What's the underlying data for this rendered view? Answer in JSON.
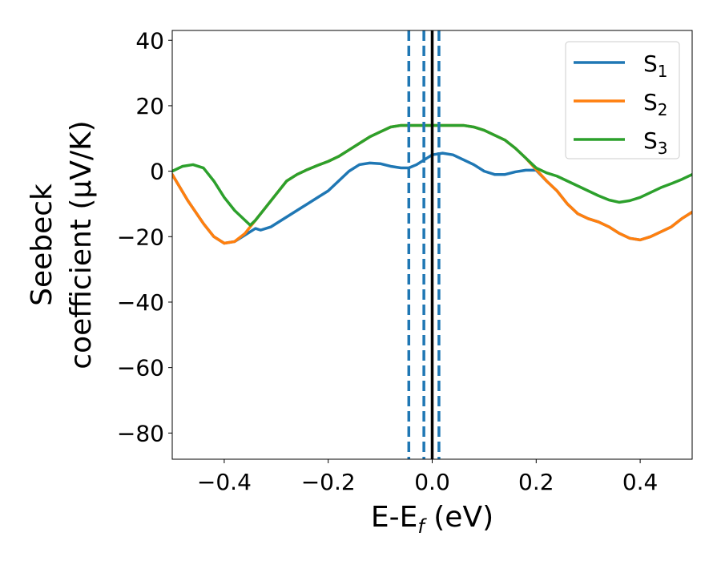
{
  "chart_data": {
    "type": "line",
    "xlabel_main": "E-E",
    "xlabel_sub": "f",
    "xlabel_unit": " (eV)",
    "ylabel_line1": "Seebeck",
    "ylabel_line2": "coefficient  (μV/K)",
    "xlim": [
      -0.5,
      0.5
    ],
    "ylim": [
      -88,
      43
    ],
    "xticks": [
      -0.4,
      -0.2,
      0.0,
      0.2,
      0.4
    ],
    "xtick_labels": [
      "−0.4",
      "−0.2",
      "0.0",
      "0.2",
      "0.4"
    ],
    "yticks": [
      40,
      20,
      0,
      -20,
      -40,
      -60,
      -80
    ],
    "ytick_labels": [
      "40",
      "20",
      "0",
      "−20",
      "−40",
      "−60",
      "−80"
    ],
    "grid": false,
    "legend_position": "top-right",
    "vertical_lines": [
      {
        "x": -0.045,
        "style": "dashed",
        "color": "#1f77b4"
      },
      {
        "x": -0.016,
        "style": "dashed",
        "color": "#1f77b4"
      },
      {
        "x": 0.0,
        "style": "solid",
        "color": "#000000"
      },
      {
        "x": 0.013,
        "style": "dashed",
        "color": "#1f77b4"
      }
    ],
    "series": [
      {
        "name": "S",
        "sub": "1",
        "color": "#1f77b4",
        "points": [
          [
            -0.5,
            -1
          ],
          [
            -0.47,
            -9
          ],
          [
            -0.44,
            -16
          ],
          [
            -0.42,
            -20
          ],
          [
            -0.4,
            -22
          ],
          [
            -0.38,
            -21.5
          ],
          [
            -0.36,
            -19.5
          ],
          [
            -0.34,
            -17.5
          ],
          [
            -0.33,
            -18
          ],
          [
            -0.31,
            -17
          ],
          [
            -0.28,
            -14
          ],
          [
            -0.25,
            -11
          ],
          [
            -0.22,
            -8
          ],
          [
            -0.2,
            -6
          ],
          [
            -0.18,
            -3
          ],
          [
            -0.16,
            0
          ],
          [
            -0.14,
            2
          ],
          [
            -0.12,
            2.5
          ],
          [
            -0.1,
            2.3
          ],
          [
            -0.08,
            1.5
          ],
          [
            -0.06,
            1
          ],
          [
            -0.045,
            1
          ],
          [
            -0.03,
            2
          ],
          [
            -0.015,
            3.5
          ],
          [
            0.0,
            5
          ],
          [
            0.02,
            5.5
          ],
          [
            0.04,
            5
          ],
          [
            0.06,
            3.5
          ],
          [
            0.08,
            2
          ],
          [
            0.1,
            0
          ],
          [
            0.12,
            -1
          ],
          [
            0.14,
            -1
          ],
          [
            0.16,
            -0.2
          ],
          [
            0.18,
            0.3
          ],
          [
            0.2,
            0.3
          ],
          [
            0.22,
            -3
          ],
          [
            0.24,
            -6
          ],
          [
            0.26,
            -10
          ],
          [
            0.28,
            -13
          ],
          [
            0.3,
            -14.5
          ],
          [
            0.32,
            -15.5
          ],
          [
            0.34,
            -17
          ],
          [
            0.36,
            -19
          ],
          [
            0.38,
            -20.5
          ],
          [
            0.4,
            -21
          ],
          [
            0.42,
            -20
          ],
          [
            0.44,
            -18.5
          ],
          [
            0.46,
            -17
          ],
          [
            0.48,
            -14.5
          ],
          [
            0.5,
            -12.5
          ]
        ]
      },
      {
        "name": "S",
        "sub": "2",
        "color": "#ff7f0e",
        "points": [
          [
            -0.5,
            -1
          ],
          [
            -0.47,
            -9
          ],
          [
            -0.44,
            -16
          ],
          [
            -0.42,
            -20
          ],
          [
            -0.4,
            -22
          ],
          [
            -0.38,
            -21.5
          ],
          [
            -0.36,
            -19
          ],
          [
            -0.34,
            -15
          ],
          [
            -0.32,
            -11
          ],
          [
            -0.3,
            -7
          ],
          [
            -0.28,
            -3
          ],
          [
            -0.26,
            -1
          ],
          [
            -0.24,
            0.5
          ],
          [
            -0.22,
            1.8
          ],
          [
            -0.2,
            3
          ],
          [
            -0.18,
            4.5
          ],
          [
            -0.16,
            6.5
          ],
          [
            -0.14,
            8.5
          ],
          [
            -0.12,
            10.5
          ],
          [
            -0.1,
            12
          ],
          [
            -0.08,
            13.5
          ],
          [
            -0.06,
            14
          ],
          [
            -0.04,
            14
          ],
          [
            -0.02,
            14
          ],
          [
            0.0,
            14
          ],
          [
            0.02,
            14
          ],
          [
            0.04,
            14
          ],
          [
            0.06,
            14
          ],
          [
            0.08,
            13.5
          ],
          [
            0.1,
            12.5
          ],
          [
            0.12,
            11
          ],
          [
            0.14,
            9.5
          ],
          [
            0.16,
            7
          ],
          [
            0.18,
            4
          ],
          [
            0.2,
            0.5
          ],
          [
            0.22,
            -3
          ],
          [
            0.24,
            -6
          ],
          [
            0.26,
            -10
          ],
          [
            0.28,
            -13
          ],
          [
            0.3,
            -14.5
          ],
          [
            0.32,
            -15.5
          ],
          [
            0.34,
            -17
          ],
          [
            0.36,
            -19
          ],
          [
            0.38,
            -20.5
          ],
          [
            0.4,
            -21
          ],
          [
            0.42,
            -20
          ],
          [
            0.44,
            -18.5
          ],
          [
            0.46,
            -17
          ],
          [
            0.48,
            -14.5
          ],
          [
            0.5,
            -12.5
          ]
        ]
      },
      {
        "name": "S",
        "sub": "3",
        "color": "#2ca02c",
        "points": [
          [
            -0.5,
            0
          ],
          [
            -0.48,
            1.5
          ],
          [
            -0.46,
            2
          ],
          [
            -0.44,
            1
          ],
          [
            -0.42,
            -3
          ],
          [
            -0.4,
            -8
          ],
          [
            -0.38,
            -12
          ],
          [
            -0.36,
            -15
          ],
          [
            -0.35,
            -16.5
          ],
          [
            -0.34,
            -15
          ],
          [
            -0.32,
            -11
          ],
          [
            -0.3,
            -7
          ],
          [
            -0.28,
            -3
          ],
          [
            -0.26,
            -1
          ],
          [
            -0.24,
            0.5
          ],
          [
            -0.22,
            1.8
          ],
          [
            -0.2,
            3
          ],
          [
            -0.18,
            4.5
          ],
          [
            -0.16,
            6.5
          ],
          [
            -0.14,
            8.5
          ],
          [
            -0.12,
            10.5
          ],
          [
            -0.1,
            12
          ],
          [
            -0.08,
            13.5
          ],
          [
            -0.06,
            14
          ],
          [
            -0.04,
            14
          ],
          [
            -0.02,
            14
          ],
          [
            0.0,
            14
          ],
          [
            0.02,
            14
          ],
          [
            0.04,
            14
          ],
          [
            0.06,
            14
          ],
          [
            0.08,
            13.5
          ],
          [
            0.1,
            12.5
          ],
          [
            0.12,
            11
          ],
          [
            0.14,
            9.5
          ],
          [
            0.16,
            7
          ],
          [
            0.18,
            4
          ],
          [
            0.2,
            1
          ],
          [
            0.22,
            -0.5
          ],
          [
            0.24,
            -1.5
          ],
          [
            0.26,
            -3
          ],
          [
            0.28,
            -4.5
          ],
          [
            0.3,
            -6
          ],
          [
            0.32,
            -7.5
          ],
          [
            0.34,
            -8.8
          ],
          [
            0.36,
            -9.5
          ],
          [
            0.38,
            -9
          ],
          [
            0.4,
            -8
          ],
          [
            0.42,
            -6.5
          ],
          [
            0.44,
            -5
          ],
          [
            0.46,
            -3.8
          ],
          [
            0.48,
            -2.5
          ],
          [
            0.5,
            -1
          ]
        ]
      }
    ]
  }
}
